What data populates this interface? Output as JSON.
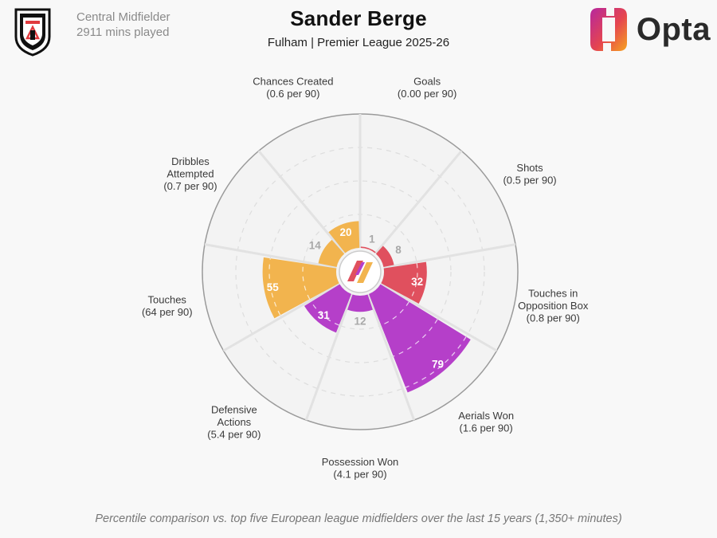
{
  "header": {
    "position": "Central Midfielder",
    "minutes": "2911 mins played",
    "player_name": "Sander Berge",
    "subtitle": "Fulham | Premier League 2025-26",
    "provider": "Opta"
  },
  "footer": {
    "note": "Percentile comparison vs. top five European league midfielders over the last 15 years (1,350+ minutes)"
  },
  "colors": {
    "attacking": "#e0505e",
    "possession": "#b53fc9",
    "defending": "#f2b44e",
    "background": "#f8f8f8",
    "crest_red": "#e03a3e"
  },
  "icons": [
    "fulham-crest-icon",
    "opta-logo-icon",
    "center-logo-icon"
  ],
  "chart_data": {
    "type": "polar-bar",
    "scale": "percentile",
    "rmax": 100,
    "grid": true,
    "categories": [
      {
        "label": [
          "Goals",
          "(0.00 per 90)"
        ],
        "value": 1,
        "group": "attacking"
      },
      {
        "label": [
          "Shots",
          "(0.5 per 90)"
        ],
        "value": 8,
        "group": "attacking"
      },
      {
        "label": [
          "Touches in",
          "Opposition Box",
          "(0.8 per 90)"
        ],
        "value": 32,
        "group": "attacking"
      },
      {
        "label": [
          "Aerials Won",
          "(1.6 per 90)"
        ],
        "value": 79,
        "group": "possession"
      },
      {
        "label": [
          "Possession Won",
          "(4.1 per 90)"
        ],
        "value": 12,
        "group": "possession"
      },
      {
        "label": [
          "Defensive",
          "Actions",
          "(5.4 per 90)"
        ],
        "value": 31,
        "group": "possession"
      },
      {
        "label": [
          "Touches",
          "(64 per 90)"
        ],
        "value": 55,
        "group": "defending"
      },
      {
        "label": [
          "Dribbles",
          "Attempted",
          "(0.7 per 90)"
        ],
        "value": 14,
        "group": "defending"
      },
      {
        "label": [
          "Chances Created",
          "(0.6 per 90)"
        ],
        "value": 20,
        "group": "defending"
      }
    ]
  }
}
